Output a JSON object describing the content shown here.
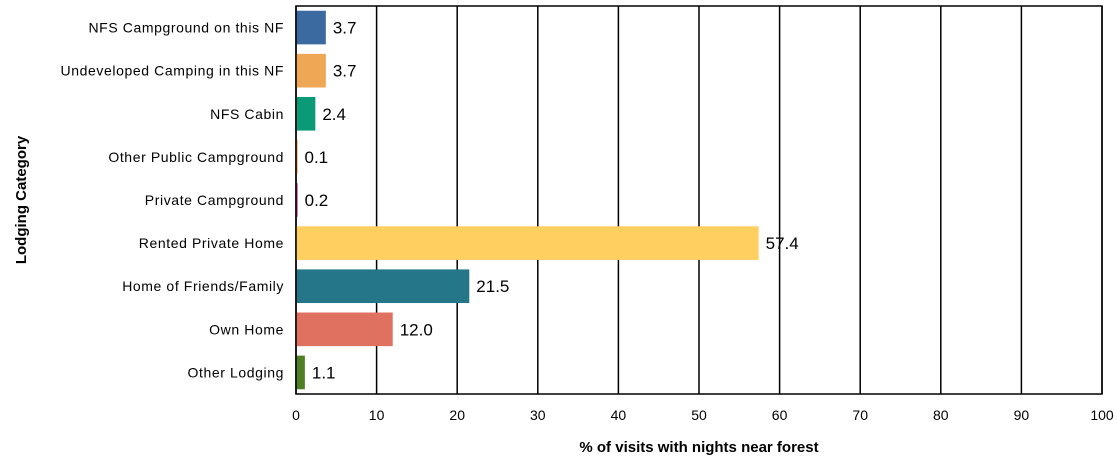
{
  "chart_data": {
    "type": "bar",
    "orientation": "horizontal",
    "categories": [
      "NFS Campground on this NF",
      "Undeveloped Camping in this NF",
      "NFS Cabin",
      "Other Public Campground",
      "Private Campground",
      "Rented Private Home",
      "Home of Friends/Family",
      "Own Home",
      "Other Lodging"
    ],
    "values": [
      3.7,
      3.7,
      2.4,
      0.1,
      0.2,
      57.4,
      21.5,
      12.0,
      1.1
    ],
    "value_labels": [
      "3.7",
      "3.7",
      "2.4",
      "0.1",
      "0.2",
      "57.4",
      "21.5",
      "12.0",
      "1.1"
    ],
    "colors": [
      "#3b6aa0",
      "#f0a755",
      "#0a9a77",
      "#e8842a",
      "#c2286f",
      "#ffcf5f",
      "#26768a",
      "#e0705f",
      "#4f7f23"
    ],
    "xlabel": "% of visits with nights near forest",
    "ylabel": "Lodging Category",
    "xlim": [
      0,
      100
    ],
    "xticks": [
      "0",
      "10",
      "20",
      "30",
      "40",
      "50",
      "60",
      "70",
      "80",
      "90",
      "100"
    ],
    "grid": "vertical"
  }
}
